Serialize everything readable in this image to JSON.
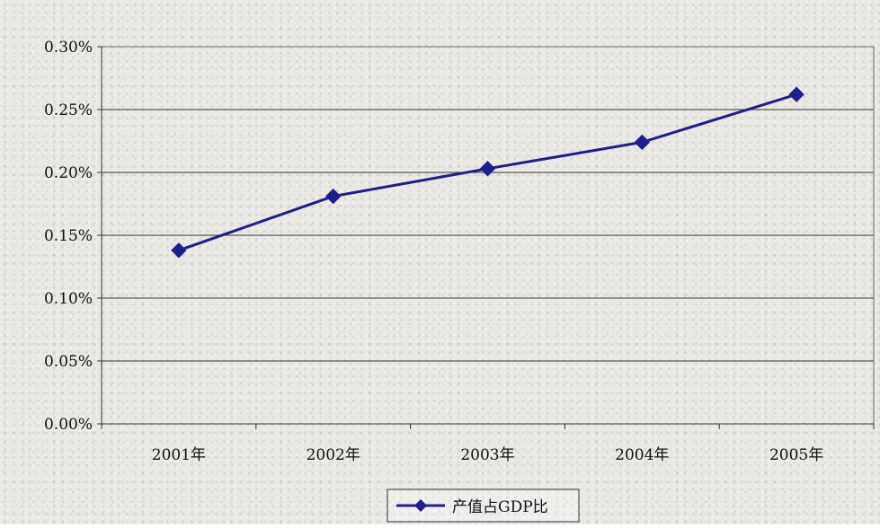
{
  "chart_data": {
    "type": "line",
    "categories": [
      "2001年",
      "2002年",
      "2003年",
      "2004年",
      "2005年"
    ],
    "series": [
      {
        "name": "产值占GDP比",
        "values": [
          0.138,
          0.181,
          0.203,
          0.224,
          0.262
        ],
        "color": "#1f1f8c"
      }
    ],
    "title": "",
    "xlabel": "",
    "ylabel": "",
    "ylim": [
      0,
      0.3
    ],
    "yticks": [
      "0.00%",
      "0.05%",
      "0.10%",
      "0.15%",
      "0.20%",
      "0.25%",
      "0.30%"
    ],
    "ytick_values": [
      0,
      0.05,
      0.1,
      0.15,
      0.2,
      0.25,
      0.3
    ],
    "grid": true,
    "legend_position": "bottom",
    "marker": "diamond"
  }
}
